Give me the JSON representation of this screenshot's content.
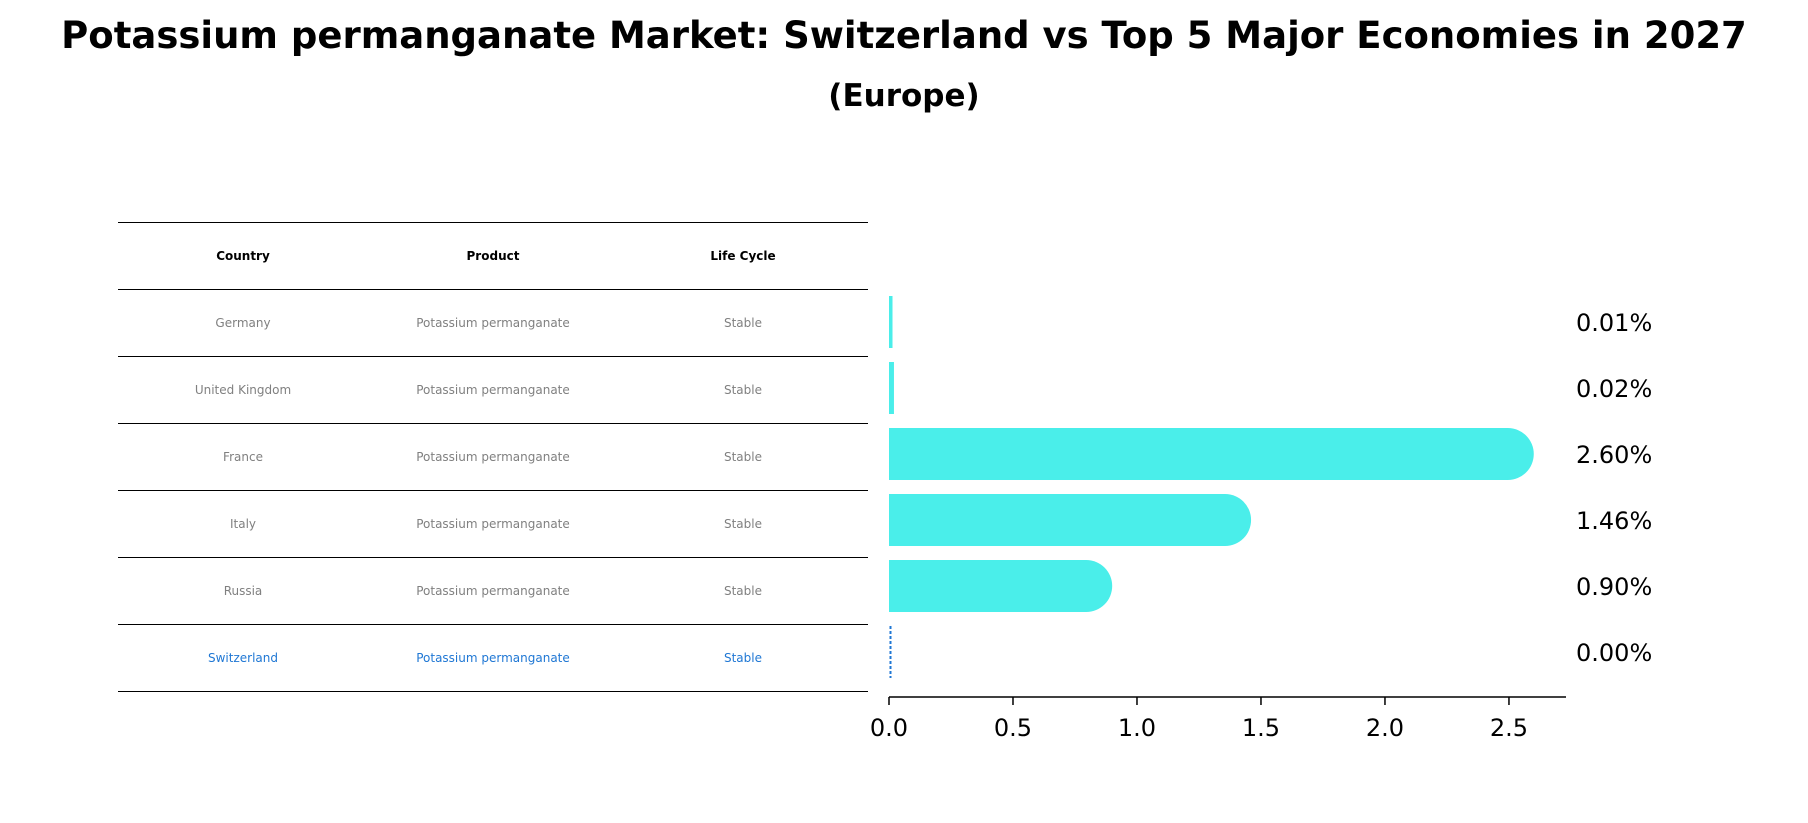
{
  "title": "Potassium permanganate Market: Switzerland vs Top 5 Major Economies in 2027",
  "subtitle": "(Europe)",
  "table": {
    "headers": [
      "Country",
      "Product",
      "Life Cycle"
    ],
    "rows": [
      {
        "country": "Germany",
        "product": "Potassium permanganate",
        "life_cycle": "Stable"
      },
      {
        "country": "United Kingdom",
        "product": "Potassium permanganate",
        "life_cycle": "Stable"
      },
      {
        "country": "France",
        "product": "Potassium permanganate",
        "life_cycle": "Stable"
      },
      {
        "country": "Italy",
        "product": "Potassium permanganate",
        "life_cycle": "Stable"
      },
      {
        "country": "Russia",
        "product": "Potassium permanganate",
        "life_cycle": "Stable"
      },
      {
        "country": "Switzerland",
        "product": "Potassium permanganate",
        "life_cycle": "Stable"
      }
    ]
  },
  "colors": {
    "bar": "#4aeeea",
    "highlight": "#1f77d4",
    "muted_text": "#808080"
  },
  "chart_data": {
    "type": "bar",
    "orientation": "horizontal",
    "categories": [
      "Germany",
      "United Kingdom",
      "France",
      "Italy",
      "Russia",
      "Switzerland"
    ],
    "values": [
      0.01,
      0.02,
      2.6,
      1.46,
      0.9,
      0.0
    ],
    "value_labels": [
      "0.01%",
      "0.02%",
      "2.60%",
      "1.46%",
      "0.90%",
      "0.00%"
    ],
    "xlim": [
      0,
      2.73
    ],
    "xticks": [
      0.0,
      0.5,
      1.0,
      1.5,
      2.0,
      2.5
    ],
    "xtick_labels": [
      "0.0",
      "0.5",
      "1.0",
      "1.5",
      "2.0",
      "2.5"
    ],
    "highlight_category": "Switzerland",
    "grid": false
  }
}
